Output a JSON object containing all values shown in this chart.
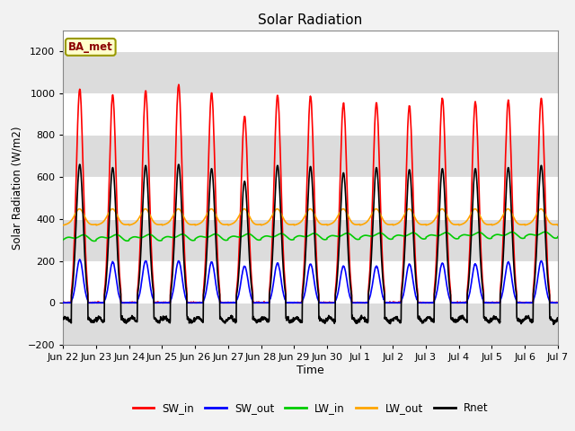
{
  "title": "Solar Radiation",
  "xlabel": "Time",
  "ylabel": "Solar Radiation (W/m2)",
  "station_label": "BA_met",
  "ylim": [
    -200,
    1300
  ],
  "yticks": [
    -200,
    0,
    200,
    400,
    600,
    800,
    1000,
    1200
  ],
  "num_days": 15,
  "colors": {
    "SW_in": "#FF0000",
    "SW_out": "#0000FF",
    "LW_in": "#00CC00",
    "LW_out": "#FFA500",
    "Rnet": "#000000"
  },
  "line_widths": {
    "SW_in": 1.2,
    "SW_out": 1.2,
    "LW_in": 1.2,
    "LW_out": 1.2,
    "Rnet": 1.2
  },
  "plot_bg_color": "#FFFFFF",
  "band_color": "#DCDCDC",
  "tick_labels": [
    "Jun 22",
    "Jun 23",
    "Jun 24",
    "Jun 25",
    "Jun 26",
    "Jun 27",
    "Jun 28",
    "Jun 29",
    "Jun 30",
    "Jul 1",
    "Jul 2",
    "Jul 3",
    "Jul 4",
    "Jul 5",
    "Jul 6",
    "Jul 7"
  ],
  "SW_in_peaks": [
    1020,
    990,
    1010,
    1040,
    1000,
    890,
    990,
    985,
    950,
    955,
    940,
    975,
    960,
    965,
    975
  ],
  "SW_out_peaks": [
    205,
    195,
    200,
    200,
    195,
    175,
    190,
    185,
    175,
    175,
    185,
    190,
    185,
    195,
    200
  ],
  "LW_in_base": 300,
  "LW_in_variation": 40,
  "LW_out_base": 370,
  "LW_out_variation": 80,
  "Rnet_peaks": [
    660,
    645,
    655,
    660,
    640,
    580,
    655,
    650,
    620,
    645,
    635,
    640,
    640,
    645,
    655
  ],
  "Rnet_night": -80,
  "figsize": [
    6.4,
    4.8
  ],
  "dpi": 100
}
